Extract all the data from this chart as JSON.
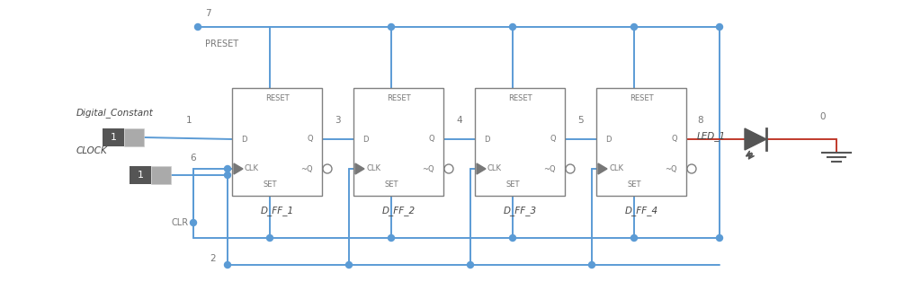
{
  "bg_color": "#ffffff",
  "wire_color": "#5b9bd5",
  "red_wire_color": "#c0392b",
  "box_edge_color": "#808080",
  "text_color": "#666666",
  "dark_text": "#444444",
  "label_color": "#777777",
  "node_color": "#5b9bd5",
  "component_dark": "#555555",
  "component_light": "#aaaaaa",
  "ff_labels": [
    "D_FF_1",
    "D_FF_2",
    "D_FF_3",
    "D_FF_4"
  ],
  "wire_label_color": "#888888",
  "led_color": "#555555"
}
